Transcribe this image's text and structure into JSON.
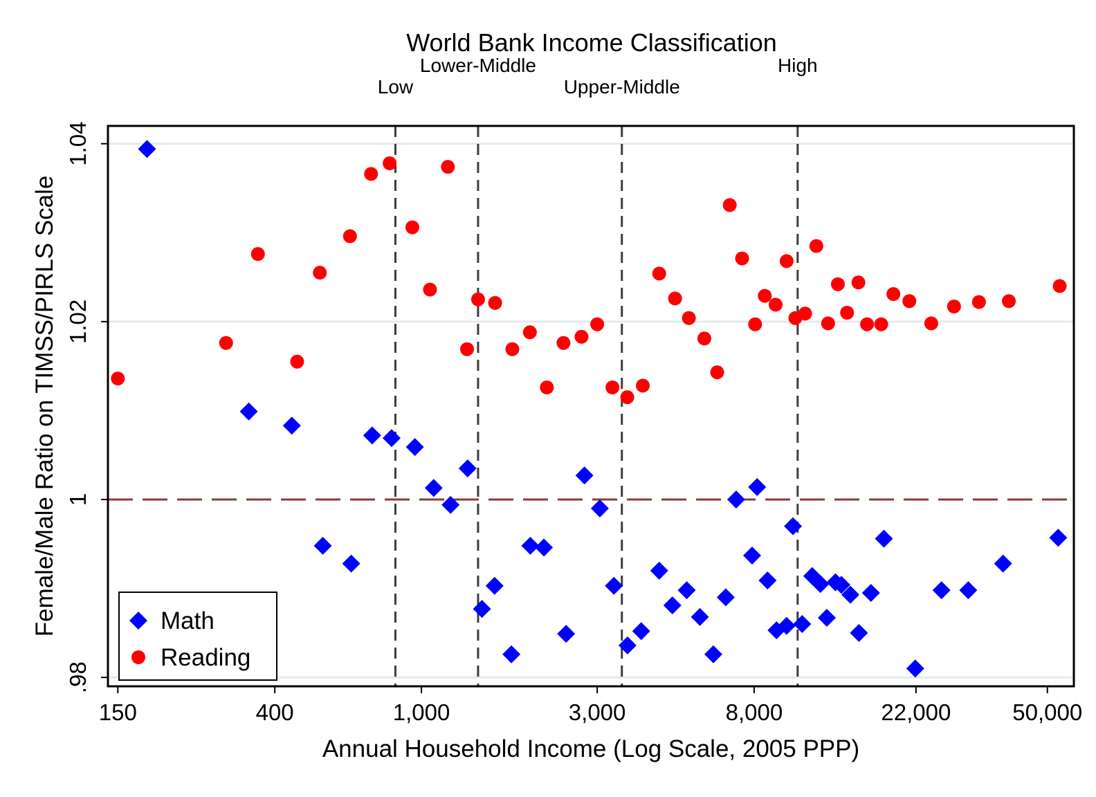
{
  "chart_data": {
    "type": "scatter",
    "title": "World Bank Income Classification",
    "xlabel": "Annual Household Income (Log Scale, 2005 PPP)",
    "ylabel": "Female/Male Ratio on TIMSS/PIRLS Scale",
    "x_scale": "log",
    "xlim": [
      141,
      59000
    ],
    "ylim": [
      0.979,
      1.042
    ],
    "x_ticks": [
      150,
      400,
      1000,
      3000,
      8000,
      22000,
      50000
    ],
    "x_tick_labels": [
      "150",
      "400",
      "1,000",
      "3,000",
      "8,000",
      "22,000",
      "50,000"
    ],
    "y_ticks": [
      0.98,
      1.0,
      1.02,
      1.04
    ],
    "y_tick_labels": [
      ".98",
      "1",
      "1.02",
      "1.04"
    ],
    "grid": true,
    "legend_position": "bottom-left",
    "reference_line": {
      "y": 1.0,
      "color": "#8b3a3a",
      "style": "dashed"
    },
    "classification_lines": [
      {
        "label": "Low",
        "x": 850
      },
      {
        "label": "Lower-Middle",
        "x": 1425
      },
      {
        "label": "Upper-Middle",
        "x": 3500
      },
      {
        "label": "High",
        "x": 10500
      }
    ],
    "series": [
      {
        "name": "Math",
        "marker": "diamond",
        "color": "#0000ff",
        "points": [
          [
            180,
            1.0394
          ],
          [
            340,
            1.0099
          ],
          [
            445,
            1.0083
          ],
          [
            540,
            0.9948
          ],
          [
            645,
            0.9928
          ],
          [
            735,
            1.0072
          ],
          [
            830,
            1.0069
          ],
          [
            960,
            1.0059
          ],
          [
            1080,
            1.0013
          ],
          [
            1200,
            0.9994
          ],
          [
            1335,
            1.0035
          ],
          [
            1460,
            0.9877
          ],
          [
            1580,
            0.9903
          ],
          [
            1755,
            0.9826
          ],
          [
            1975,
            0.9948
          ],
          [
            2150,
            0.9946
          ],
          [
            2470,
            0.9849
          ],
          [
            2770,
            1.0027
          ],
          [
            3050,
            0.999
          ],
          [
            3330,
            0.9903
          ],
          [
            3625,
            0.9836
          ],
          [
            3950,
            0.9852
          ],
          [
            4420,
            0.992
          ],
          [
            4800,
            0.9881
          ],
          [
            5250,
            0.9898
          ],
          [
            5700,
            0.9868
          ],
          [
            6200,
            0.9826
          ],
          [
            6700,
            0.989
          ],
          [
            7150,
            1.0
          ],
          [
            7900,
            0.9937
          ],
          [
            8150,
            1.0014
          ],
          [
            8700,
            0.9909
          ],
          [
            9200,
            0.9853
          ],
          [
            9800,
            0.9858
          ],
          [
            10200,
            0.997
          ],
          [
            10800,
            0.986
          ],
          [
            11500,
            0.9914
          ],
          [
            12100,
            0.9905
          ],
          [
            12600,
            0.9867
          ],
          [
            13300,
            0.9907
          ],
          [
            13800,
            0.9904
          ],
          [
            14600,
            0.9893
          ],
          [
            15400,
            0.985
          ],
          [
            16600,
            0.9895
          ],
          [
            18000,
            0.9956
          ],
          [
            21900,
            0.981
          ],
          [
            25800,
            0.9898
          ],
          [
            30500,
            0.9898
          ],
          [
            37900,
            0.9928
          ],
          [
            53500,
            0.9957
          ]
        ]
      },
      {
        "name": "Reading",
        "marker": "circle",
        "color": "#ff0000",
        "points": [
          [
            150,
            1.0136
          ],
          [
            295,
            1.0176
          ],
          [
            360,
            1.0276
          ],
          [
            460,
            1.0155
          ],
          [
            530,
            1.0255
          ],
          [
            640,
            1.0296
          ],
          [
            730,
            1.0366
          ],
          [
            820,
            1.0378
          ],
          [
            945,
            1.0306
          ],
          [
            1055,
            1.0236
          ],
          [
            1180,
            1.0374
          ],
          [
            1330,
            1.0169
          ],
          [
            1425,
            1.0225
          ],
          [
            1585,
            1.0221
          ],
          [
            1765,
            1.0169
          ],
          [
            1970,
            1.0188
          ],
          [
            2190,
            1.0126
          ],
          [
            2430,
            1.0176
          ],
          [
            2720,
            1.0183
          ],
          [
            3000,
            1.0197
          ],
          [
            3300,
            1.0126
          ],
          [
            3620,
            1.0115
          ],
          [
            3990,
            1.0128
          ],
          [
            4420,
            1.0254
          ],
          [
            4880,
            1.0226
          ],
          [
            5320,
            1.0204
          ],
          [
            5860,
            1.0181
          ],
          [
            6350,
            1.0143
          ],
          [
            6870,
            1.0331
          ],
          [
            7420,
            1.0271
          ],
          [
            8050,
            1.0197
          ],
          [
            8550,
            1.0229
          ],
          [
            9150,
            1.0219
          ],
          [
            9800,
            1.0268
          ],
          [
            10350,
            1.0204
          ],
          [
            11000,
            1.0209
          ],
          [
            11800,
            1.0285
          ],
          [
            12700,
            1.0198
          ],
          [
            13500,
            1.0242
          ],
          [
            14300,
            1.021
          ],
          [
            15350,
            1.0244
          ],
          [
            16200,
            1.0197
          ],
          [
            17700,
            1.0197
          ],
          [
            19100,
            1.0231
          ],
          [
            21100,
            1.0223
          ],
          [
            24200,
            1.0198
          ],
          [
            27900,
            1.0217
          ],
          [
            32600,
            1.0222
          ],
          [
            39300,
            1.0223
          ],
          [
            54000,
            1.024
          ]
        ]
      }
    ]
  }
}
